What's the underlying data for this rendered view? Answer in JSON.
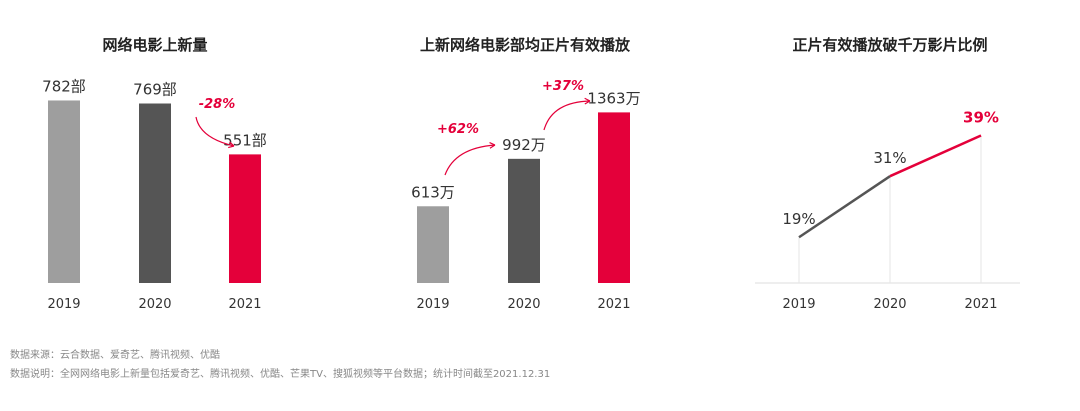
{
  "colors": {
    "gray_light": "#9e9e9e",
    "gray_dark": "#555555",
    "red": "#e4003a",
    "axis": "#dddddd"
  },
  "chart_data": [
    {
      "type": "bar",
      "title": "网络电影上新量",
      "categories": [
        "2019",
        "2020",
        "2021"
      ],
      "values": [
        782,
        769,
        551
      ],
      "unit": "部",
      "labels": [
        "782部",
        "769部",
        "551部"
      ],
      "ylim": [
        0,
        820
      ],
      "annotations": [
        {
          "text": "-28%",
          "between": [
            "2020",
            "2021"
          ]
        }
      ]
    },
    {
      "type": "bar",
      "title": "上新网络电影部均正片有效播放",
      "categories": [
        "2019",
        "2020",
        "2021"
      ],
      "values": [
        613,
        992,
        1363
      ],
      "unit": "万",
      "labels": [
        "613万",
        "992万",
        "1363万"
      ],
      "ylim": [
        0,
        1450
      ],
      "annotations": [
        {
          "text": "+62%",
          "between": [
            "2019",
            "2020"
          ]
        },
        {
          "text": "+37%",
          "between": [
            "2020",
            "2021"
          ]
        }
      ]
    },
    {
      "type": "line",
      "title": "正片有效播放破千万影片比例",
      "categories": [
        "2019",
        "2020",
        "2021"
      ],
      "values": [
        19,
        31,
        39
      ],
      "labels": [
        "19%",
        "31%",
        "39%"
      ],
      "ylim": [
        10,
        45
      ]
    }
  ],
  "notes": {
    "source": "数据来源：云合数据、爱奇艺、腾讯视频、优酷",
    "desc": "数据说明：全网网络电影上新量包括爱奇艺、腾讯视频、优酷、芒果TV、搜狐视频等平台数据；统计时间截至2021.12.31"
  }
}
